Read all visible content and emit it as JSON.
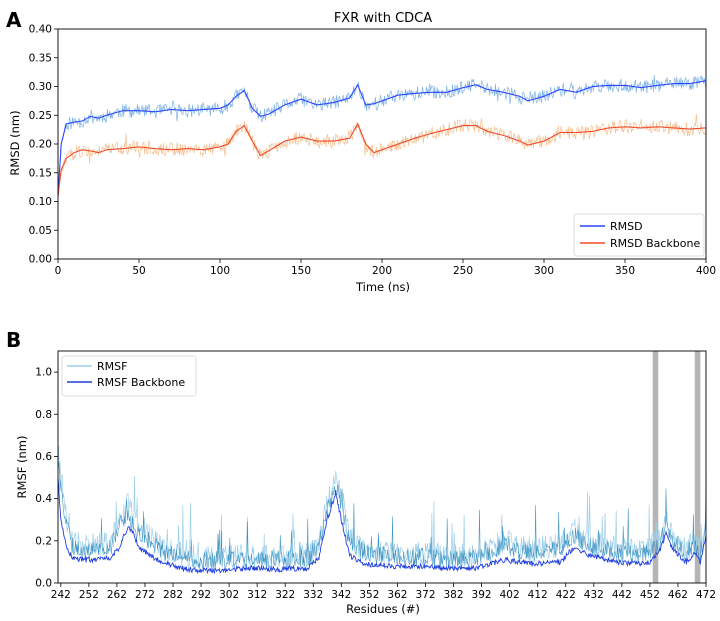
{
  "panel_labels": [
    "A",
    "B"
  ],
  "chart_data": [
    {
      "type": "line",
      "panel": "A",
      "title": "FXR with CDCA",
      "xlabel": "Time (ns)",
      "ylabel": "RMSD (nm)",
      "xlim": [
        0,
        400
      ],
      "ylim": [
        0.0,
        0.4
      ],
      "xticks": [
        0,
        50,
        100,
        150,
        200,
        250,
        300,
        350,
        400
      ],
      "yticks": [
        "0.00",
        "0.05",
        "0.10",
        "0.15",
        "0.20",
        "0.25",
        "0.30",
        "0.35",
        "0.40"
      ],
      "legend_position": "lower-right",
      "series": [
        {
          "name": "RMSD",
          "color": "#2c45ff",
          "raw_color": "#7fb3e6",
          "x": [
            0,
            2,
            5,
            10,
            15,
            20,
            25,
            30,
            40,
            50,
            60,
            70,
            80,
            90,
            100,
            105,
            110,
            115,
            120,
            125,
            130,
            140,
            150,
            160,
            170,
            180,
            185,
            190,
            195,
            200,
            210,
            220,
            230,
            240,
            250,
            258,
            265,
            275,
            285,
            290,
            300,
            310,
            320,
            330,
            340,
            350,
            360,
            370,
            380,
            390,
            400
          ],
          "values": [
            0.11,
            0.2,
            0.235,
            0.238,
            0.24,
            0.248,
            0.245,
            0.25,
            0.258,
            0.258,
            0.256,
            0.26,
            0.258,
            0.26,
            0.262,
            0.268,
            0.283,
            0.293,
            0.262,
            0.248,
            0.252,
            0.268,
            0.278,
            0.268,
            0.272,
            0.28,
            0.303,
            0.268,
            0.27,
            0.275,
            0.285,
            0.288,
            0.29,
            0.29,
            0.298,
            0.303,
            0.295,
            0.29,
            0.283,
            0.275,
            0.283,
            0.295,
            0.29,
            0.3,
            0.302,
            0.302,
            0.298,
            0.302,
            0.305,
            0.305,
            0.31
          ]
        },
        {
          "name": "RMSD Backbone",
          "color": "#f04a28",
          "raw_color": "#f6bf8f",
          "x": [
            0,
            2,
            5,
            10,
            15,
            20,
            25,
            30,
            40,
            50,
            60,
            70,
            80,
            90,
            100,
            105,
            110,
            115,
            120,
            125,
            130,
            140,
            150,
            160,
            170,
            180,
            185,
            190,
            195,
            200,
            210,
            220,
            230,
            240,
            250,
            258,
            265,
            275,
            285,
            290,
            300,
            310,
            320,
            330,
            340,
            350,
            360,
            370,
            380,
            390,
            400
          ],
          "values": [
            0.11,
            0.155,
            0.175,
            0.185,
            0.19,
            0.188,
            0.185,
            0.19,
            0.192,
            0.195,
            0.192,
            0.19,
            0.192,
            0.19,
            0.195,
            0.2,
            0.222,
            0.232,
            0.205,
            0.18,
            0.188,
            0.205,
            0.212,
            0.205,
            0.205,
            0.21,
            0.235,
            0.2,
            0.185,
            0.19,
            0.2,
            0.21,
            0.218,
            0.225,
            0.232,
            0.232,
            0.222,
            0.215,
            0.205,
            0.198,
            0.205,
            0.22,
            0.22,
            0.222,
            0.228,
            0.23,
            0.228,
            0.23,
            0.228,
            0.226,
            0.228
          ]
        }
      ]
    },
    {
      "type": "line",
      "panel": "B",
      "title": "",
      "xlabel": "Residues (#)",
      "ylabel": "RMSF (nm)",
      "xlim": [
        241,
        472
      ],
      "ylim": [
        0.0,
        1.1
      ],
      "xticks": [
        242,
        252,
        262,
        272,
        282,
        292,
        302,
        312,
        322,
        332,
        342,
        352,
        362,
        372,
        382,
        392,
        402,
        412,
        422,
        432,
        442,
        452,
        462,
        472
      ],
      "yticks": [
        "0.0",
        "0.2",
        "0.4",
        "0.6",
        "0.8",
        "1.0"
      ],
      "legend_position": "top-left",
      "highlight_bands": [
        [
          453,
          455
        ],
        [
          468,
          470
        ]
      ],
      "series": [
        {
          "name": "RMSF",
          "color": "#9fd0ea",
          "spike_color": "#1a7fb8",
          "x": [
            241,
            242,
            244,
            246,
            250,
            255,
            260,
            263,
            266,
            268,
            270,
            275,
            280,
            285,
            290,
            300,
            310,
            320,
            330,
            334,
            337,
            340,
            342,
            345,
            350,
            360,
            370,
            380,
            390,
            395,
            400,
            405,
            410,
            420,
            425,
            430,
            440,
            448,
            452,
            455,
            458,
            460,
            465,
            468,
            470,
            472
          ],
          "values": [
            0.62,
            0.5,
            0.3,
            0.2,
            0.17,
            0.18,
            0.2,
            0.3,
            0.37,
            0.3,
            0.25,
            0.2,
            0.15,
            0.14,
            0.12,
            0.12,
            0.13,
            0.12,
            0.13,
            0.2,
            0.38,
            0.5,
            0.42,
            0.22,
            0.16,
            0.14,
            0.14,
            0.13,
            0.13,
            0.16,
            0.2,
            0.17,
            0.16,
            0.18,
            0.25,
            0.2,
            0.16,
            0.15,
            0.17,
            0.2,
            0.3,
            0.22,
            0.16,
            0.2,
            0.16,
            0.28
          ]
        },
        {
          "name": "RMSF Backbone",
          "color": "#1f3fe0",
          "x": [
            241,
            242,
            244,
            246,
            250,
            255,
            260,
            263,
            266,
            268,
            270,
            275,
            280,
            285,
            290,
            300,
            310,
            320,
            330,
            334,
            337,
            340,
            342,
            345,
            350,
            360,
            370,
            380,
            390,
            395,
            400,
            405,
            410,
            420,
            425,
            430,
            440,
            448,
            452,
            455,
            458,
            460,
            465,
            468,
            470,
            472
          ],
          "values": [
            0.5,
            0.3,
            0.17,
            0.12,
            0.11,
            0.11,
            0.12,
            0.17,
            0.27,
            0.23,
            0.17,
            0.12,
            0.09,
            0.07,
            0.06,
            0.06,
            0.07,
            0.065,
            0.07,
            0.12,
            0.3,
            0.43,
            0.3,
            0.13,
            0.09,
            0.08,
            0.08,
            0.07,
            0.07,
            0.09,
            0.11,
            0.1,
            0.09,
            0.1,
            0.17,
            0.13,
            0.1,
            0.09,
            0.1,
            0.14,
            0.24,
            0.16,
            0.1,
            0.14,
            0.1,
            0.22
          ]
        }
      ]
    }
  ]
}
